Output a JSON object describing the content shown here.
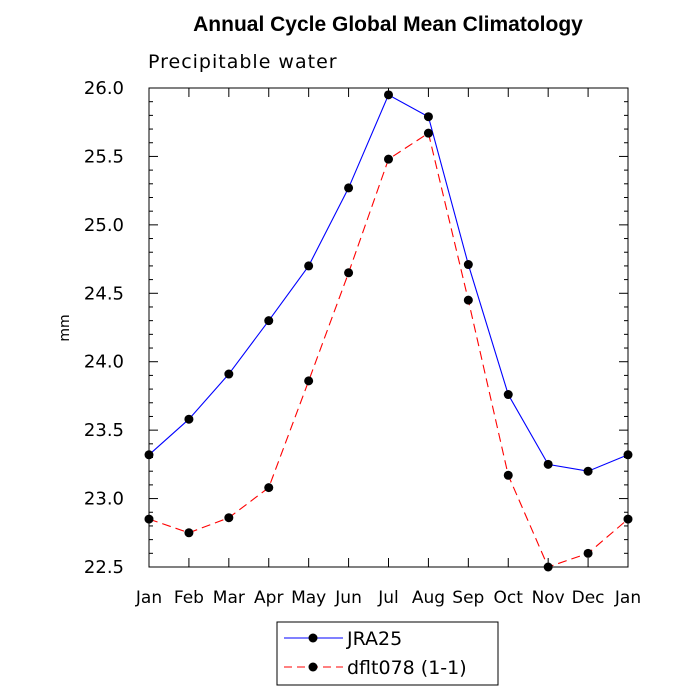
{
  "chart_data": {
    "type": "line",
    "title": "Annual Cycle Global Mean Climatology",
    "subtitle": "Precipitable water",
    "xlabel": "",
    "ylabel": "mm",
    "categories": [
      "Jan",
      "Feb",
      "Mar",
      "Apr",
      "May",
      "Jun",
      "Jul",
      "Aug",
      "Sep",
      "Oct",
      "Nov",
      "Dec",
      "Jan"
    ],
    "ylim": [
      22.5,
      26.0
    ],
    "yticks": [
      "22.5",
      "23.0",
      "23.5",
      "24.0",
      "24.5",
      "25.0",
      "25.5",
      "26.0"
    ],
    "grid": false,
    "legend_position": "bottom-center",
    "series": [
      {
        "name": "JRA25",
        "color": "#0000ff",
        "dash": "solid",
        "values": [
          23.32,
          23.58,
          23.91,
          24.3,
          24.7,
          25.27,
          25.95,
          25.79,
          24.71,
          23.76,
          23.25,
          23.2,
          23.32
        ]
      },
      {
        "name": "dflt078 (1-1)",
        "color": "#ff0000",
        "dash": "dashed",
        "values": [
          22.85,
          22.75,
          22.86,
          23.08,
          23.86,
          24.65,
          25.48,
          25.67,
          24.45,
          23.17,
          22.5,
          22.6,
          22.85
        ]
      }
    ]
  }
}
